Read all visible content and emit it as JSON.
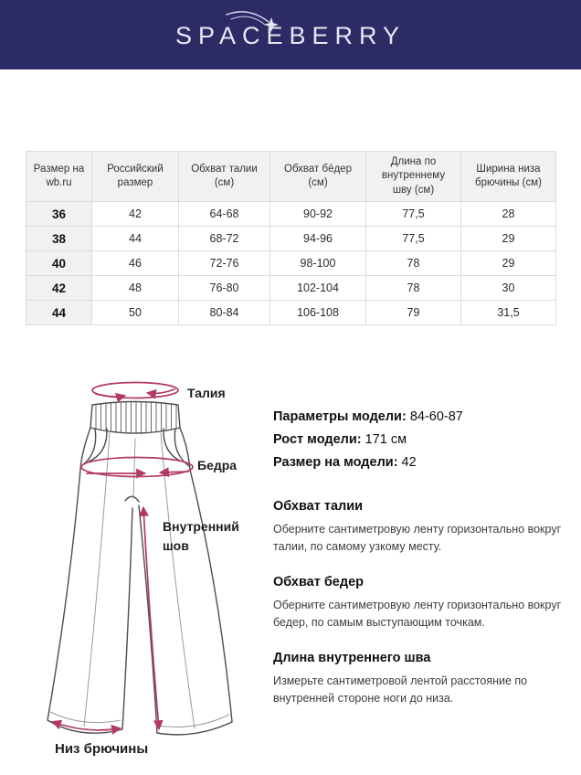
{
  "brand": {
    "logo_text": "SPACEBERRY"
  },
  "size_table": {
    "columns": [
      "Размер на wb.ru",
      "Российский размер",
      "Обхват талии (см)",
      "Обхват бёдер (см)",
      "Длина по внутреннему шву (см)",
      "Ширина низа брючины (см)"
    ],
    "rows": [
      [
        "36",
        "42",
        "64-68",
        "90-92",
        "77,5",
        "28"
      ],
      [
        "38",
        "44",
        "68-72",
        "94-96",
        "77,5",
        "29"
      ],
      [
        "40",
        "46",
        "72-76",
        "98-100",
        "78",
        "29"
      ],
      [
        "42",
        "48",
        "76-80",
        "102-104",
        "78",
        "30"
      ],
      [
        "44",
        "50",
        "80-84",
        "106-108",
        "79",
        "31,5"
      ]
    ]
  },
  "diagram": {
    "labels": {
      "waist": "Талия",
      "hips": "Бедра",
      "inner_seam": "Внутренний шов",
      "leg_bottom": "Низ брючины"
    }
  },
  "model_info": [
    {
      "label": "Параметры модели:",
      "value": "84-60-87"
    },
    {
      "label": "Рост модели:",
      "value": "171 см"
    },
    {
      "label": "Размер на модели:",
      "value": "42"
    }
  ],
  "measure_guide": [
    {
      "title": "Обхват талии",
      "text": "Оберните сантиметровую ленту горизонтально вокруг талии, по самому узкому месту."
    },
    {
      "title": "Обхват бедер",
      "text": "Оберните сантиметровую ленту горизонтально вокруг бедер, по самым выступающим точкам."
    },
    {
      "title": "Длина внутреннего шва",
      "text": "Измерьте сантиметровой лентой расстояние по внутренней стороне ноги до низа."
    }
  ],
  "colors": {
    "header_bg": "#2d2b66",
    "accent": "#b23a60",
    "table_header_bg": "#f1f1f1",
    "table_border": "#dcdcdc",
    "logo_text_color": "#e8e6f3"
  }
}
